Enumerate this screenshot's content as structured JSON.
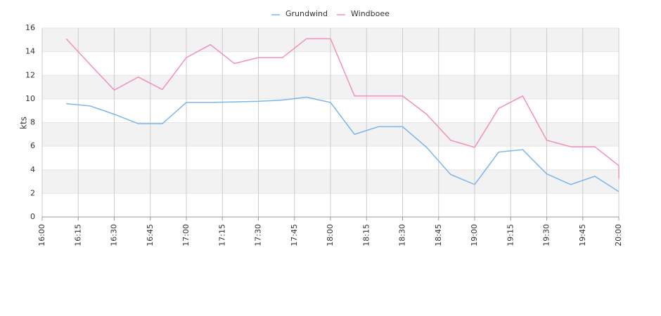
{
  "chart_data": {
    "type": "line",
    "y_label": "kts",
    "xlim": [
      "16:00",
      "20:00"
    ],
    "xticks": [
      "16:00",
      "16:15",
      "16:30",
      "16:45",
      "17:00",
      "17:15",
      "17:30",
      "17:45",
      "18:00",
      "18:15",
      "18:30",
      "18:45",
      "19:00",
      "19:15",
      "19:30",
      "19:45",
      "20:00"
    ],
    "ylim": [
      0,
      16
    ],
    "yticks": [
      0,
      2,
      4,
      6,
      8,
      10,
      12,
      14,
      16
    ],
    "grid": true,
    "legend": "top",
    "series": [
      {
        "name": "Grundwind",
        "color": "#7cb5ec",
        "x": [
          "16:10",
          "16:20",
          "16:30",
          "16:40",
          "16:50",
          "17:00",
          "17:10",
          "17:20",
          "17:30",
          "17:40",
          "17:50",
          "18:00",
          "18:10",
          "18:20",
          "18:30",
          "18:40",
          "18:50",
          "19:00",
          "19:10",
          "19:20",
          "19:30",
          "19:40",
          "19:50",
          "20:00"
        ],
        "values": [
          9.6,
          9.4,
          8.7,
          7.9,
          7.9,
          9.7,
          9.7,
          9.75,
          9.8,
          9.9,
          10.15,
          9.7,
          7.0,
          7.65,
          7.65,
          5.9,
          3.6,
          2.75,
          5.5,
          5.7,
          3.65,
          2.75,
          3.45,
          2.15
        ]
      },
      {
        "name": "Windboee",
        "color": "#f28fc0",
        "x": [
          "16:10",
          "16:20",
          "16:30",
          "16:40",
          "16:50",
          "17:00",
          "17:10",
          "17:20",
          "17:30",
          "17:40",
          "17:50",
          "18:00",
          "18:10",
          "18:20",
          "18:30",
          "18:40",
          "18:50",
          "19:00",
          "19:10",
          "19:20",
          "19:30",
          "19:40",
          "19:50",
          "20:00",
          "20:00"
        ],
        "values": [
          15.1,
          12.9,
          10.75,
          11.85,
          10.8,
          13.5,
          14.6,
          13.0,
          13.5,
          13.5,
          15.1,
          15.1,
          10.25,
          10.25,
          10.25,
          8.7,
          6.5,
          5.9,
          9.2,
          10.25,
          6.5,
          5.95,
          5.95,
          4.35,
          3.25
        ]
      }
    ]
  }
}
